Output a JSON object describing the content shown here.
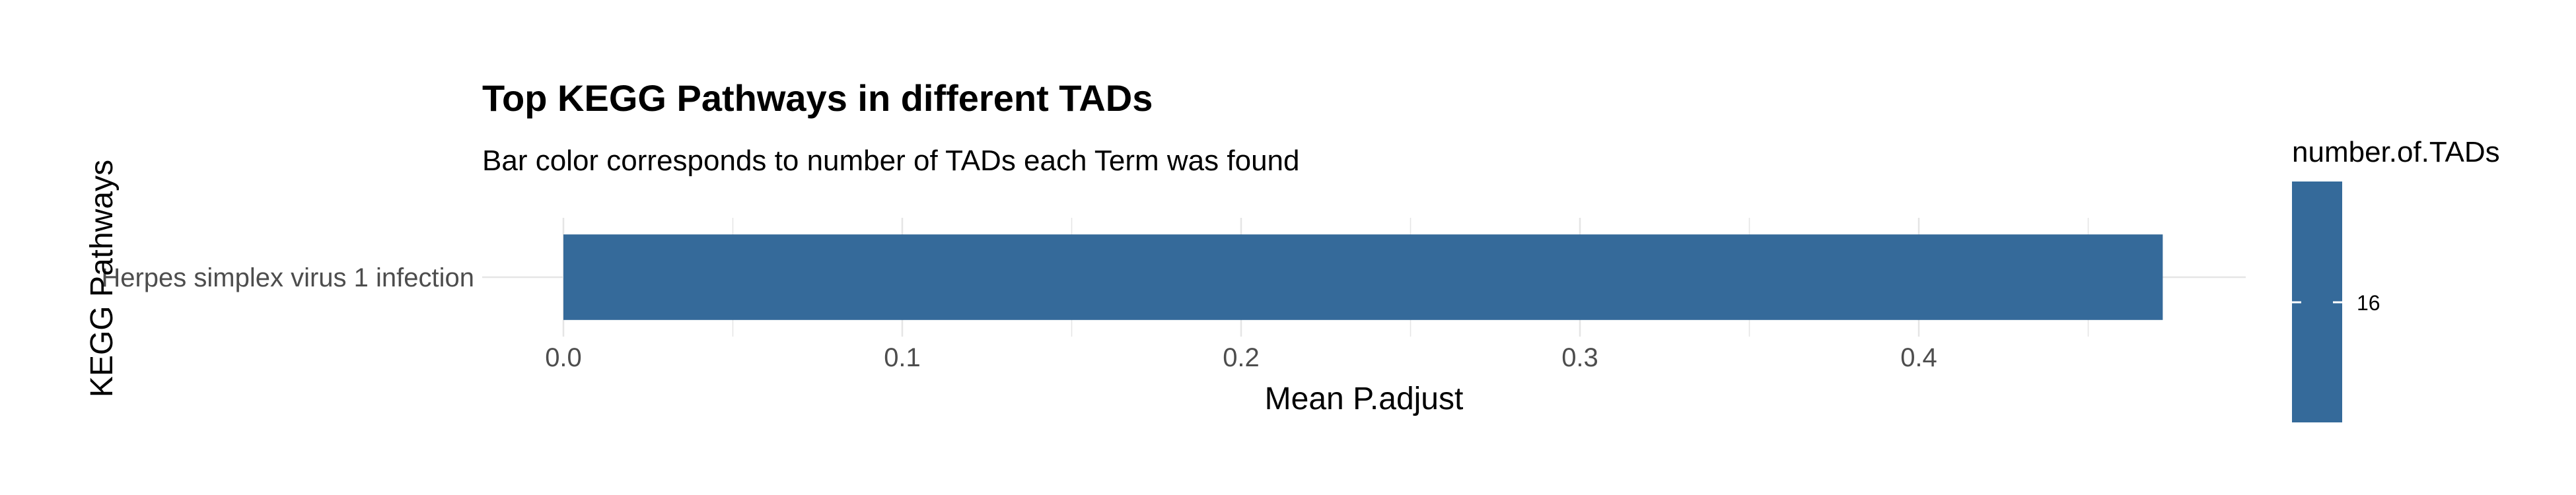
{
  "chart_data": {
    "type": "bar",
    "orientation": "horizontal",
    "title": "Top KEGG Pathways in different TADs",
    "subtitle": "Bar color corresponds to number of TADs each Term was found",
    "xlabel": "Mean P.adjust",
    "ylabel": "KEGG Pathways",
    "categories": [
      "Herpes simplex virus 1 infection"
    ],
    "values": [
      0.472
    ],
    "color_values": [
      16
    ],
    "xlim": [
      0,
      0.5
    ],
    "x_ticks": [
      "0.0",
      "0.1",
      "0.2",
      "0.3",
      "0.4"
    ],
    "grid": true,
    "bar_color": "#356a9a",
    "legend": {
      "title": "number.of.TADs",
      "labels": [
        "16"
      ],
      "placement": "right"
    }
  }
}
